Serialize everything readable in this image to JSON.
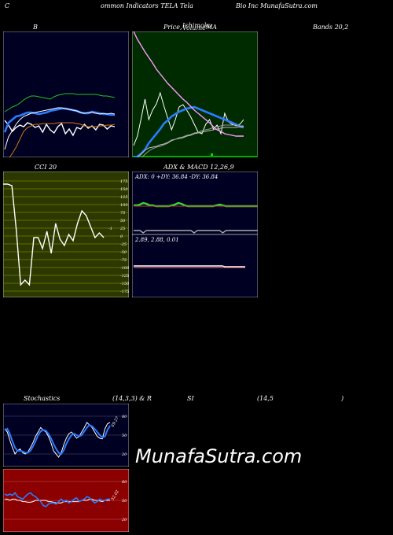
{
  "header": {
    "left": "C",
    "mid": "ommon  Indicators TELA Tela",
    "right": "Bio  Inc MunafaSutra.com"
  },
  "row_labels": {
    "b": "B",
    "price": "Price,",
    "overlap1": "Ichimoku",
    "overlap2": "Volume",
    "ma": "MA",
    "bands": "Bands 20,2",
    "cci": "CCI 20",
    "adx_macd": "ADX  & MACD 12,26,9",
    "stoch": "Stochastics",
    "stoch_params": "(14,3,3) & R",
    "si": "SI",
    "rsi_params": "(14,5",
    "rsi_close": ")"
  },
  "watermark": "MunafaSutra.com",
  "chart_data": [
    {
      "id": "bollinger",
      "type": "line",
      "x": [
        0,
        1,
        2,
        3,
        4,
        5,
        6,
        7,
        8,
        9,
        10,
        11,
        12,
        13,
        14,
        15,
        16,
        17,
        18,
        19,
        20,
        21,
        22,
        23,
        24,
        25,
        26,
        27,
        28,
        29
      ],
      "series": [
        {
          "values": [
            113,
            119,
            127,
            122,
            119,
            121,
            116,
            118,
            122,
            120,
            128,
            118,
            125,
            129,
            121,
            117,
            130,
            124,
            132,
            122,
            124,
            118,
            123,
            120,
            125,
            118,
            119,
            124,
            120,
            121
          ],
          "color": "#ffffff"
        },
        {
          "values": [
            128,
            116,
            112,
            108,
            107,
            105,
            103,
            103,
            104,
            105,
            104,
            103,
            101,
            100,
            99,
            98,
            98,
            99,
            100,
            101,
            103,
            104,
            104,
            102,
            103,
            104,
            105,
            105,
            106,
            106
          ],
          "color": "#2a7cff"
        },
        {
          "values": [
            102,
            99,
            96,
            94,
            91,
            87,
            84,
            82,
            82,
            83,
            84,
            85,
            86,
            83,
            81,
            80,
            79,
            79,
            79,
            80,
            80,
            80,
            80,
            80,
            80,
            81,
            82,
            82,
            83,
            84
          ],
          "color": "#1fc51f"
        },
        {
          "values": [
            150,
            134,
            126,
            118,
            112,
            108,
            106,
            104,
            103,
            102,
            101,
            100,
            99,
            98,
            97,
            97,
            98,
            99,
            100,
            101,
            103,
            104,
            103,
            103,
            104,
            105,
            104,
            105,
            104,
            105
          ],
          "color": "#ffffff"
        },
        {
          "values": [
            170,
            162,
            155,
            147,
            137,
            127,
            122,
            120,
            118,
            118,
            117,
            117,
            117,
            117,
            116,
            116,
            116,
            116,
            116,
            117,
            118,
            120,
            121,
            121,
            121,
            120,
            120,
            119,
            119,
            118
          ],
          "color": "#d07810"
        }
      ]
    },
    {
      "id": "price-ma",
      "type": "line",
      "x": [
        0,
        1,
        2,
        3,
        4,
        5,
        6,
        7,
        8,
        9,
        10,
        11,
        12,
        13,
        14,
        15,
        16,
        17,
        18,
        19,
        20,
        21,
        22,
        23,
        24,
        25,
        26,
        27,
        28,
        29
      ],
      "series": [
        {
          "values": [
            145,
            133,
            110,
            86,
            112,
            100,
            92,
            78,
            95,
            110,
            125,
            112,
            96,
            93,
            100,
            108,
            118,
            128,
            130,
            118,
            112,
            124,
            119,
            130,
            104,
            115,
            118,
            120,
            118,
            112
          ],
          "color": "#ffffff"
        },
        {
          "values": [
            160,
            159,
            155,
            150,
            142,
            136,
            130,
            124,
            117,
            113,
            108,
            105,
            102,
            100,
            98,
            97,
            96,
            98,
            100,
            102,
            104,
            106,
            108,
            110,
            112,
            114,
            116,
            118,
            121,
            122
          ],
          "color": "#2a7cff"
        },
        {
          "values": [
            165,
            160,
            156,
            151,
            148,
            147,
            146,
            144,
            143,
            141,
            138,
            137,
            136,
            135,
            133,
            132,
            130,
            129,
            128,
            127,
            126,
            125,
            124,
            123,
            122,
            122,
            122,
            122,
            121,
            121
          ],
          "color": "#bbbbbb"
        },
        {
          "values": [
            168,
            165,
            161,
            156,
            152,
            149,
            147,
            146,
            144,
            142,
            139,
            137,
            135,
            134,
            132,
            131,
            129,
            128,
            126,
            125,
            124,
            122,
            121,
            120,
            119,
            119,
            119,
            119,
            120,
            120
          ],
          "color": "#999999"
        },
        {
          "values": [
            0,
            10,
            18,
            26,
            33,
            40,
            48,
            54,
            60,
            66,
            71,
            76,
            81,
            86,
            90,
            95,
            100,
            104,
            108,
            112,
            116,
            121,
            125,
            127,
            130,
            131,
            132,
            133,
            133,
            133
          ],
          "color": "#ff99ff"
        }
      ]
    },
    {
      "id": "cci",
      "type": "line",
      "ylim": [
        -175,
        175
      ],
      "y_ticks": [
        175,
        150,
        125,
        100,
        75,
        50,
        25,
        0,
        -25,
        -50,
        -75,
        -100,
        -125,
        -150,
        -175
      ],
      "x": [
        0,
        1,
        2,
        3,
        4,
        5,
        6,
        7,
        8,
        9,
        10,
        11,
        12,
        13,
        14,
        15,
        16,
        17,
        18,
        19,
        20,
        21,
        22,
        23
      ],
      "series": [
        {
          "values": [
            165,
            165,
            160,
            20,
            -155,
            -140,
            -155,
            -5,
            -5,
            -40,
            15,
            -55,
            40,
            -10,
            -30,
            5,
            -15,
            40,
            80,
            65,
            30,
            -5,
            10,
            -5
          ],
          "color": "#ffffff"
        }
      ],
      "end_label": "-1"
    },
    {
      "id": "adx",
      "type": "line",
      "adx": "0",
      "plus_di": "36.84",
      "minus_di": "36.84",
      "header_text": "ADX: 0  +DY: 36.84  -DY: 36.84",
      "x": [
        0,
        1,
        2,
        3,
        4,
        5,
        6,
        7,
        8,
        9,
        10,
        11,
        12,
        13,
        14,
        15,
        16,
        17,
        18,
        19,
        20,
        21,
        22,
        23,
        24,
        25,
        26,
        27,
        28,
        29,
        30,
        31,
        32,
        33,
        34,
        35,
        36,
        37,
        38,
        39
      ],
      "series": [
        {
          "values": [
            37,
            37,
            38,
            40,
            39,
            37,
            37,
            36,
            36,
            36,
            36,
            36,
            37,
            38,
            40,
            39,
            37,
            36,
            36,
            36,
            36,
            36,
            36,
            36,
            36,
            36,
            37,
            38,
            37,
            36,
            36,
            36,
            36,
            36,
            36,
            36,
            36,
            36,
            36,
            36
          ],
          "color": "#32dc32"
        },
        {
          "values": [
            36,
            36,
            36,
            36,
            36,
            36,
            36,
            36,
            36,
            36,
            36,
            36,
            36,
            36,
            36,
            36,
            36,
            36,
            36,
            36,
            36,
            36,
            36,
            36,
            36,
            36,
            36,
            36,
            36,
            36,
            36,
            36,
            36,
            36,
            36,
            36,
            36,
            36,
            36,
            36
          ],
          "color": "#c03030"
        },
        {
          "values": [
            5,
            5,
            5,
            2,
            5,
            5,
            5,
            5,
            5,
            5,
            5,
            5,
            5,
            5,
            5,
            5,
            5,
            5,
            5,
            2,
            5,
            5,
            5,
            5,
            5,
            5,
            5,
            5,
            2,
            5,
            5,
            5,
            5,
            5,
            5,
            5,
            5,
            5,
            5,
            5
          ],
          "color": "#aaaaaa"
        }
      ]
    },
    {
      "id": "macd",
      "type": "line",
      "macd": "2.89",
      "signal": "2.88",
      "histogram": "0.01",
      "header_text": "2.89,  2.88,  0.01",
      "x": [
        0,
        1,
        2,
        3,
        4,
        5,
        6,
        7,
        8,
        9,
        10,
        11,
        12,
        13,
        14,
        15,
        16,
        17,
        18,
        19,
        20,
        21,
        22,
        23,
        24,
        25,
        26,
        27,
        28,
        29,
        30,
        31,
        32,
        33,
        34,
        35,
        36,
        37,
        38,
        39
      ],
      "series": [
        {
          "values": [
            2.9,
            2.9,
            2.9,
            2.9,
            2.9,
            2.9,
            2.9,
            2.9,
            2.9,
            2.9,
            2.9,
            2.9,
            2.9,
            2.9,
            2.9,
            2.9,
            2.9,
            2.9,
            2.9,
            2.9,
            2.9,
            2.9,
            2.9,
            2.9,
            2.9,
            2.9,
            2.9,
            2.9,
            2.9,
            2.9,
            2.9,
            2.9,
            2.89,
            2.89,
            2.89,
            2.89,
            2.89,
            2.89,
            2.89,
            2.89
          ],
          "color": "#ffffff"
        },
        {
          "values": [
            2.88,
            2.88,
            2.88,
            2.88,
            2.88,
            2.88,
            2.88,
            2.88,
            2.88,
            2.88,
            2.88,
            2.88,
            2.88,
            2.88,
            2.88,
            2.88,
            2.88,
            2.88,
            2.88,
            2.88,
            2.88,
            2.88,
            2.88,
            2.88,
            2.88,
            2.88,
            2.88,
            2.88,
            2.88,
            2.88,
            2.88,
            2.88,
            2.88,
            2.88,
            2.88,
            2.88,
            2.88,
            2.88,
            2.88,
            2.88
          ],
          "color": "#ff8080"
        }
      ]
    },
    {
      "id": "stochastics",
      "type": "line",
      "ylim": [
        0,
        100
      ],
      "y_ticks": [
        80,
        50,
        20
      ],
      "end_label": "69.27",
      "x": [
        0,
        1,
        2,
        3,
        4,
        5,
        6,
        7,
        8,
        9,
        10,
        11,
        12,
        13,
        14,
        15,
        16,
        17,
        18,
        19,
        20,
        21,
        22,
        23,
        24,
        25,
        26,
        27,
        28,
        29,
        30,
        31,
        32,
        33,
        34,
        35,
        36,
        37,
        38,
        39,
        40,
        41
      ],
      "series": [
        {
          "values": [
            60,
            55,
            42,
            30,
            20,
            25,
            28,
            22,
            20,
            23,
            30,
            38,
            48,
            55,
            62,
            58,
            55,
            48,
            38,
            25,
            20,
            15,
            22,
            35,
            45,
            52,
            55,
            50,
            45,
            48,
            55,
            62,
            70,
            66,
            62,
            55,
            48,
            45,
            44,
            60,
            68,
            70
          ],
          "color": "#ffffff"
        },
        {
          "values": [
            58,
            60,
            52,
            40,
            30,
            25,
            25,
            24,
            22,
            22,
            25,
            32,
            40,
            50,
            56,
            58,
            57,
            52,
            45,
            36,
            28,
            22,
            20,
            26,
            36,
            44,
            50,
            52,
            50,
            48,
            50,
            56,
            62,
            66,
            64,
            60,
            55,
            50,
            46,
            48,
            58,
            65
          ],
          "color": "#2a7cff"
        }
      ]
    },
    {
      "id": "rsi",
      "type": "line",
      "ylim": [
        0,
        100
      ],
      "y_ticks": [
        80,
        50,
        20
      ],
      "end_label": "52.02",
      "x": [
        0,
        1,
        2,
        3,
        4,
        5,
        6,
        7,
        8,
        9,
        10,
        11,
        12,
        13,
        14,
        15,
        16,
        17,
        18,
        19,
        20,
        21,
        22,
        23,
        24,
        25,
        26,
        27,
        28,
        29,
        30,
        31,
        32,
        33,
        34,
        35,
        36,
        37,
        38,
        39,
        40,
        41
      ],
      "series": [
        {
          "values": [
            52,
            52,
            50,
            52,
            52,
            50,
            50,
            48,
            48,
            47,
            47,
            48,
            50,
            50,
            50,
            50,
            50,
            48,
            48,
            47,
            46,
            46,
            46,
            48,
            48,
            48,
            48,
            48,
            48,
            48,
            50,
            50,
            50,
            52,
            52,
            50,
            50,
            49,
            48,
            50,
            50,
            50
          ],
          "color": "#ffffff"
        },
        {
          "values": [
            60,
            58,
            60,
            58,
            62,
            56,
            54,
            52,
            56,
            60,
            62,
            58,
            56,
            52,
            48,
            42,
            40,
            44,
            46,
            46,
            44,
            48,
            52,
            48,
            50,
            46,
            48,
            52,
            54,
            48,
            50,
            52,
            56,
            54,
            50,
            46,
            48,
            52,
            50,
            50,
            52,
            52
          ],
          "color": "#2a7cff"
        }
      ]
    }
  ]
}
